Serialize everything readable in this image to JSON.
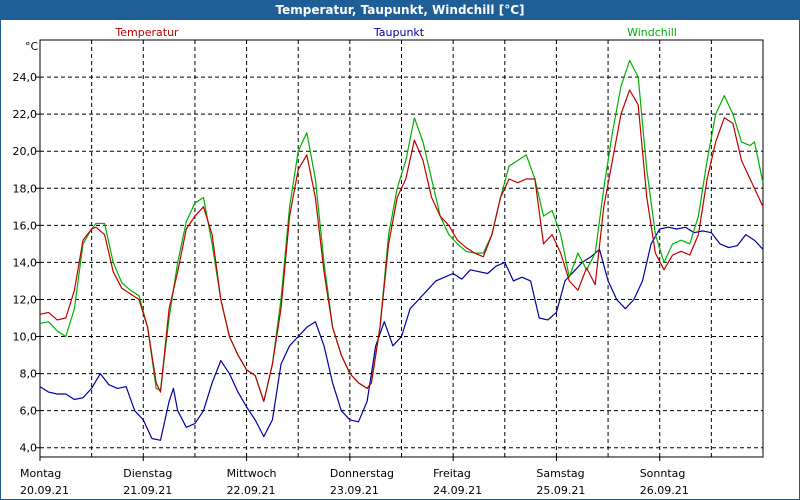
{
  "window": {
    "title": "Temperatur, Taupunkt, Windchill [°C]"
  },
  "chart_data": {
    "type": "line",
    "title": "Temperatur, Taupunkt, Windchill [°C]",
    "ylabel": "°C",
    "ylim": [
      3.5,
      26.0
    ],
    "yticks": [
      4,
      6,
      8,
      10,
      12,
      14,
      16,
      18,
      20,
      22,
      24
    ],
    "ytick_labels": [
      "4,0",
      "6,0",
      "8,0",
      "10,0",
      "12,0",
      "14,0",
      "16,0",
      "18,0",
      "20,0",
      "22,0",
      "24,0"
    ],
    "xlim": [
      0,
      168
    ],
    "xticks": [
      0,
      24,
      48,
      72,
      96,
      120,
      144
    ],
    "xtick_labels": [
      {
        "day": "Montag",
        "date": "20.09.21"
      },
      {
        "day": "Dienstag",
        "date": "21.09.21"
      },
      {
        "day": "Mittwoch",
        "date": "22.09.21"
      },
      {
        "day": "Donnerstag",
        "date": "23.09.21"
      },
      {
        "day": "Freitag",
        "date": "24.09.21"
      },
      {
        "day": "Samstag",
        "date": "25.09.21"
      },
      {
        "day": "Sonntag",
        "date": "26.09.21"
      }
    ],
    "grid": true,
    "series": [
      {
        "name": "Temperatur",
        "color": "#c00000",
        "points": [
          [
            0,
            11.2
          ],
          [
            2,
            11.3
          ],
          [
            4,
            10.9
          ],
          [
            6,
            11.0
          ],
          [
            8,
            12.5
          ],
          [
            10,
            15.2
          ],
          [
            12,
            15.8
          ],
          [
            13,
            15.9
          ],
          [
            15,
            15.5
          ],
          [
            17,
            13.5
          ],
          [
            19,
            12.6
          ],
          [
            21,
            12.3
          ],
          [
            23,
            12.0
          ],
          [
            25,
            10.5
          ],
          [
            27,
            7.5
          ],
          [
            28,
            7.0
          ],
          [
            30,
            11.5
          ],
          [
            32,
            13.5
          ],
          [
            34,
            15.8
          ],
          [
            36,
            16.5
          ],
          [
            38,
            17.0
          ],
          [
            40,
            15.5
          ],
          [
            42,
            12.0
          ],
          [
            44,
            10.0
          ],
          [
            46,
            9.0
          ],
          [
            48,
            8.2
          ],
          [
            50,
            7.9
          ],
          [
            52,
            6.5
          ],
          [
            54,
            8.5
          ],
          [
            56,
            11.5
          ],
          [
            58,
            16.5
          ],
          [
            60,
            19.0
          ],
          [
            62,
            19.8
          ],
          [
            64,
            17.5
          ],
          [
            66,
            13.5
          ],
          [
            68,
            10.5
          ],
          [
            70,
            9.0
          ],
          [
            72,
            8.0
          ],
          [
            74,
            7.5
          ],
          [
            76,
            7.2
          ],
          [
            77,
            7.5
          ],
          [
            79,
            10.5
          ],
          [
            81,
            15.0
          ],
          [
            83,
            17.5
          ],
          [
            85,
            18.5
          ],
          [
            87,
            20.6
          ],
          [
            89,
            19.5
          ],
          [
            91,
            17.5
          ],
          [
            93,
            16.5
          ],
          [
            95,
            16.0
          ],
          [
            97,
            15.2
          ],
          [
            99,
            14.8
          ],
          [
            101,
            14.5
          ],
          [
            103,
            14.3
          ],
          [
            105,
            15.5
          ],
          [
            107,
            17.5
          ],
          [
            109,
            18.5
          ],
          [
            111,
            18.3
          ],
          [
            113,
            18.5
          ],
          [
            115,
            18.5
          ],
          [
            117,
            15.0
          ],
          [
            119,
            15.5
          ],
          [
            121,
            14.5
          ],
          [
            123,
            13.0
          ],
          [
            125,
            12.5
          ],
          [
            127,
            13.7
          ],
          [
            129,
            12.8
          ],
          [
            131,
            17.0
          ],
          [
            133,
            19.5
          ],
          [
            135,
            22.0
          ],
          [
            137,
            23.3
          ],
          [
            139,
            22.5
          ],
          [
            141,
            17.5
          ],
          [
            143,
            14.5
          ],
          [
            145,
            13.6
          ],
          [
            147,
            14.4
          ],
          [
            149,
            14.6
          ],
          [
            151,
            14.4
          ],
          [
            153,
            15.5
          ],
          [
            155,
            18.5
          ],
          [
            157,
            20.5
          ],
          [
            159,
            21.8
          ],
          [
            161,
            21.5
          ],
          [
            163,
            19.5
          ],
          [
            165,
            18.5
          ],
          [
            167,
            17.5
          ],
          [
            168,
            17.0
          ]
        ]
      },
      {
        "name": "Taupunkt",
        "color": "#0000a0",
        "points": [
          [
            0,
            7.3
          ],
          [
            2,
            7.0
          ],
          [
            4,
            6.9
          ],
          [
            6,
            6.9
          ],
          [
            8,
            6.6
          ],
          [
            10,
            6.7
          ],
          [
            12,
            7.2
          ],
          [
            14,
            8.0
          ],
          [
            16,
            7.4
          ],
          [
            18,
            7.2
          ],
          [
            20,
            7.3
          ],
          [
            22,
            6.0
          ],
          [
            24,
            5.5
          ],
          [
            26,
            4.5
          ],
          [
            28,
            4.4
          ],
          [
            30,
            6.5
          ],
          [
            31,
            7.2
          ],
          [
            32,
            6.0
          ],
          [
            34,
            5.1
          ],
          [
            36,
            5.3
          ],
          [
            38,
            6.0
          ],
          [
            40,
            7.5
          ],
          [
            42,
            8.7
          ],
          [
            44,
            8.0
          ],
          [
            46,
            7.0
          ],
          [
            48,
            6.2
          ],
          [
            50,
            5.5
          ],
          [
            52,
            4.6
          ],
          [
            54,
            5.5
          ],
          [
            56,
            8.5
          ],
          [
            58,
            9.5
          ],
          [
            60,
            10.0
          ],
          [
            62,
            10.5
          ],
          [
            64,
            10.8
          ],
          [
            66,
            9.5
          ],
          [
            68,
            7.5
          ],
          [
            70,
            6.0
          ],
          [
            72,
            5.5
          ],
          [
            74,
            5.4
          ],
          [
            76,
            6.5
          ],
          [
            78,
            9.5
          ],
          [
            80,
            10.8
          ],
          [
            82,
            9.5
          ],
          [
            84,
            10.0
          ],
          [
            86,
            11.5
          ],
          [
            88,
            12.0
          ],
          [
            90,
            12.5
          ],
          [
            92,
            13.0
          ],
          [
            94,
            13.2
          ],
          [
            96,
            13.4
          ],
          [
            98,
            13.1
          ],
          [
            100,
            13.6
          ],
          [
            102,
            13.5
          ],
          [
            104,
            13.4
          ],
          [
            106,
            13.8
          ],
          [
            108,
            14.0
          ],
          [
            110,
            13.0
          ],
          [
            112,
            13.2
          ],
          [
            114,
            13.0
          ],
          [
            116,
            11.0
          ],
          [
            118,
            10.9
          ],
          [
            120,
            11.3
          ],
          [
            122,
            13.0
          ],
          [
            124,
            13.5
          ],
          [
            126,
            14.0
          ],
          [
            128,
            14.3
          ],
          [
            130,
            14.7
          ],
          [
            132,
            13.0
          ],
          [
            134,
            12.0
          ],
          [
            136,
            11.5
          ],
          [
            138,
            12.0
          ],
          [
            140,
            13.0
          ],
          [
            142,
            15.0
          ],
          [
            144,
            15.8
          ],
          [
            146,
            15.9
          ],
          [
            148,
            15.8
          ],
          [
            150,
            15.9
          ],
          [
            152,
            15.6
          ],
          [
            154,
            15.7
          ],
          [
            156,
            15.6
          ],
          [
            158,
            15.0
          ],
          [
            160,
            14.8
          ],
          [
            162,
            14.9
          ],
          [
            164,
            15.5
          ],
          [
            166,
            15.2
          ],
          [
            168,
            14.7
          ]
        ]
      },
      {
        "name": "Windchill",
        "color": "#00b000",
        "points": [
          [
            0,
            10.7
          ],
          [
            2,
            10.8
          ],
          [
            4,
            10.3
          ],
          [
            6,
            10.0
          ],
          [
            8,
            11.5
          ],
          [
            10,
            15.0
          ],
          [
            12,
            15.8
          ],
          [
            13,
            16.1
          ],
          [
            15,
            16.1
          ],
          [
            17,
            14.0
          ],
          [
            19,
            12.9
          ],
          [
            21,
            12.5
          ],
          [
            23,
            12.2
          ],
          [
            25,
            10.5
          ],
          [
            27,
            7.2
          ],
          [
            28,
            7.1
          ],
          [
            30,
            11.0
          ],
          [
            32,
            14.0
          ],
          [
            34,
            16.2
          ],
          [
            36,
            17.2
          ],
          [
            38,
            17.5
          ],
          [
            40,
            15.0
          ],
          [
            42,
            12.0
          ],
          [
            44,
            10.0
          ],
          [
            46,
            9.0
          ],
          [
            48,
            8.2
          ],
          [
            50,
            7.9
          ],
          [
            52,
            6.5
          ],
          [
            54,
            8.5
          ],
          [
            56,
            12.0
          ],
          [
            58,
            17.0
          ],
          [
            60,
            20.0
          ],
          [
            62,
            21.0
          ],
          [
            64,
            18.5
          ],
          [
            66,
            14.0
          ],
          [
            68,
            10.5
          ],
          [
            70,
            9.0
          ],
          [
            72,
            8.0
          ],
          [
            74,
            7.5
          ],
          [
            76,
            7.2
          ],
          [
            77,
            7.5
          ],
          [
            79,
            10.5
          ],
          [
            81,
            15.5
          ],
          [
            83,
            18.0
          ],
          [
            85,
            19.5
          ],
          [
            87,
            21.8
          ],
          [
            89,
            20.5
          ],
          [
            91,
            18.5
          ],
          [
            93,
            16.5
          ],
          [
            95,
            15.5
          ],
          [
            97,
            15.0
          ],
          [
            99,
            14.6
          ],
          [
            101,
            14.5
          ],
          [
            103,
            14.5
          ],
          [
            105,
            15.5
          ],
          [
            107,
            17.5
          ],
          [
            109,
            19.2
          ],
          [
            111,
            19.5
          ],
          [
            113,
            19.8
          ],
          [
            115,
            18.5
          ],
          [
            117,
            16.5
          ],
          [
            119,
            16.8
          ],
          [
            121,
            15.5
          ],
          [
            123,
            13.2
          ],
          [
            125,
            14.5
          ],
          [
            127,
            13.6
          ],
          [
            129,
            14.5
          ],
          [
            131,
            18.0
          ],
          [
            133,
            21.0
          ],
          [
            135,
            23.5
          ],
          [
            137,
            24.9
          ],
          [
            139,
            24.0
          ],
          [
            141,
            19.0
          ],
          [
            143,
            15.5
          ],
          [
            145,
            14.0
          ],
          [
            147,
            15.0
          ],
          [
            149,
            15.2
          ],
          [
            151,
            15.0
          ],
          [
            153,
            16.5
          ],
          [
            155,
            19.5
          ],
          [
            157,
            22.0
          ],
          [
            159,
            23.0
          ],
          [
            161,
            22.0
          ],
          [
            163,
            20.5
          ],
          [
            165,
            20.3
          ],
          [
            166,
            20.5
          ],
          [
            168,
            18.3
          ]
        ]
      }
    ]
  }
}
